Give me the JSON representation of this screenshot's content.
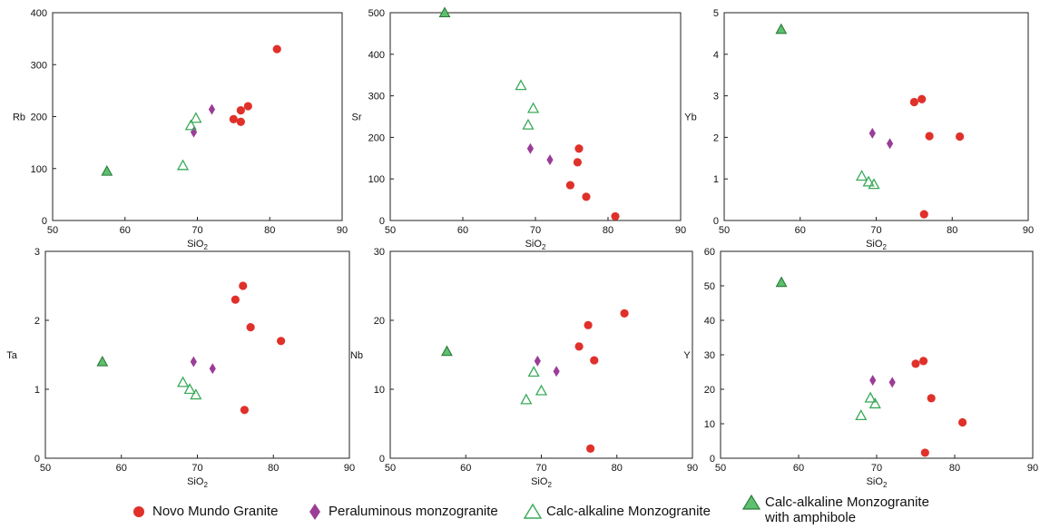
{
  "colors": {
    "novo": "#e0302a",
    "peraluminous": "#9b3d97",
    "calc_stroke": "#3aaa5a",
    "amph_fill": "#5cc06e",
    "amph_stroke": "#2c7a3a"
  },
  "legend": {
    "novo": "Novo Mundo Granite",
    "peraluminous": "Peraluminous monzogranite",
    "calc": "Calc-alkaline Monzogranite",
    "amph_line1": "Calc-alkaline Monzogranite",
    "amph_line2": "with amphibole"
  },
  "chart_data": [
    {
      "type": "scatter",
      "xlabel": "SiO2",
      "ylabel": "Rb",
      "xlim": [
        50,
        90
      ],
      "ylim": [
        0,
        400
      ],
      "xticks": [
        50,
        60,
        70,
        80,
        90
      ],
      "yticks": [
        0,
        100,
        200,
        300,
        400
      ],
      "series": [
        {
          "name": "Novo Mundo Granite",
          "marker": "circle",
          "points": [
            [
              81,
              330
            ],
            [
              77,
              220
            ],
            [
              76,
              212
            ],
            [
              75,
              195
            ],
            [
              76,
              190
            ]
          ]
        },
        {
          "name": "Peraluminous monzogranite",
          "marker": "diamond",
          "points": [
            [
              72,
              214
            ],
            [
              69.5,
              170
            ]
          ]
        },
        {
          "name": "Calc-alkaline Monzogranite",
          "marker": "triangle-open",
          "points": [
            [
              69.8,
              197
            ],
            [
              69.1,
              183
            ],
            [
              68,
              106
            ]
          ]
        },
        {
          "name": "Calc-alkaline Monzogranite with amphibole",
          "marker": "triangle-filled",
          "points": [
            [
              57.5,
              95
            ]
          ]
        }
      ]
    },
    {
      "type": "scatter",
      "xlabel": "SiO2",
      "ylabel": "Sr",
      "xlim": [
        50,
        90
      ],
      "ylim": [
        0,
        500
      ],
      "xticks": [
        50,
        60,
        70,
        80,
        90
      ],
      "yticks": [
        0,
        100,
        200,
        300,
        400,
        500
      ],
      "series": [
        {
          "name": "Novo Mundo Granite",
          "marker": "circle",
          "points": [
            [
              76,
              173
            ],
            [
              75.8,
              140
            ],
            [
              74.8,
              85
            ],
            [
              77,
              57
            ],
            [
              81,
              10
            ]
          ]
        },
        {
          "name": "Peraluminous monzogranite",
          "marker": "diamond",
          "points": [
            [
              69.3,
              173
            ],
            [
              72,
              146
            ]
          ]
        },
        {
          "name": "Calc-alkaline Monzogranite",
          "marker": "triangle-open",
          "points": [
            [
              68,
              325
            ],
            [
              69.7,
              270
            ],
            [
              69,
              230
            ]
          ]
        },
        {
          "name": "Calc-alkaline Monzogranite with amphibole",
          "marker": "triangle-filled",
          "points": [
            [
              57.5,
              500
            ]
          ]
        }
      ]
    },
    {
      "type": "scatter",
      "xlabel": "SiO2",
      "ylabel": "Yb",
      "xlim": [
        50,
        90
      ],
      "ylim": [
        0,
        5
      ],
      "xticks": [
        50,
        60,
        70,
        80,
        90
      ],
      "yticks": [
        0,
        1,
        2,
        3,
        4,
        5
      ],
      "series": [
        {
          "name": "Novo Mundo Granite",
          "marker": "circle",
          "points": [
            [
              76,
              2.92
            ],
            [
              75,
              2.85
            ],
            [
              77,
              2.03
            ],
            [
              81,
              2.02
            ],
            [
              76.3,
              0.15
            ]
          ]
        },
        {
          "name": "Peraluminous monzogranite",
          "marker": "diamond",
          "points": [
            [
              69.5,
              2.1
            ],
            [
              71.8,
              1.85
            ]
          ]
        },
        {
          "name": "Calc-alkaline Monzogranite",
          "marker": "triangle-open",
          "points": [
            [
              68.1,
              1.07
            ],
            [
              69,
              0.93
            ],
            [
              69.7,
              0.87
            ]
          ]
        },
        {
          "name": "Calc-alkaline Monzogranite with amphibole",
          "marker": "triangle-filled",
          "points": [
            [
              57.5,
              4.6
            ]
          ]
        }
      ]
    },
    {
      "type": "scatter",
      "xlabel": "SiO2",
      "ylabel": "Ta",
      "xlim": [
        50,
        90
      ],
      "ylim": [
        0,
        3
      ],
      "xticks": [
        50,
        60,
        70,
        80,
        90
      ],
      "yticks": [
        0,
        1,
        2,
        3
      ],
      "series": [
        {
          "name": "Novo Mundo Granite",
          "marker": "circle",
          "points": [
            [
              76,
              2.5
            ],
            [
              75,
              2.3
            ],
            [
              77,
              1.9
            ],
            [
              81,
              1.7
            ],
            [
              76.2,
              0.7
            ]
          ]
        },
        {
          "name": "Peraluminous monzogranite",
          "marker": "diamond",
          "points": [
            [
              69.5,
              1.4
            ],
            [
              72,
              1.3
            ]
          ]
        },
        {
          "name": "Calc-alkaline Monzogranite",
          "marker": "triangle-open",
          "points": [
            [
              68.1,
              1.1
            ],
            [
              69,
              1.0
            ],
            [
              69.8,
              0.92
            ]
          ]
        },
        {
          "name": "Calc-alkaline Monzogranite with amphibole",
          "marker": "triangle-filled",
          "points": [
            [
              57.5,
              1.4
            ]
          ]
        }
      ]
    },
    {
      "type": "scatter",
      "xlabel": "SiO2",
      "ylabel": "Nb",
      "xlim": [
        50,
        90
      ],
      "ylim": [
        0,
        30
      ],
      "xticks": [
        50,
        60,
        70,
        80,
        90
      ],
      "yticks": [
        0,
        10,
        20,
        30
      ],
      "series": [
        {
          "name": "Novo Mundo Granite",
          "marker": "circle",
          "points": [
            [
              81,
              21
            ],
            [
              76.2,
              19.3
            ],
            [
              75,
              16.2
            ],
            [
              77,
              14.2
            ],
            [
              76.5,
              1.4
            ]
          ]
        },
        {
          "name": "Peraluminous monzogranite",
          "marker": "diamond",
          "points": [
            [
              69.5,
              14.1
            ],
            [
              72,
              12.6
            ]
          ]
        },
        {
          "name": "Calc-alkaline Monzogranite",
          "marker": "triangle-open",
          "points": [
            [
              69,
              12.5
            ],
            [
              70,
              9.8
            ],
            [
              68,
              8.5
            ]
          ]
        },
        {
          "name": "Calc-alkaline Monzogranite with amphibole",
          "marker": "triangle-filled",
          "points": [
            [
              57.5,
              15.5
            ]
          ]
        }
      ]
    },
    {
      "type": "scatter",
      "xlabel": "SiO2",
      "ylabel": "Y",
      "xlim": [
        50,
        90
      ],
      "ylim": [
        0,
        60
      ],
      "xticks": [
        50,
        60,
        70,
        80,
        90
      ],
      "yticks": [
        0,
        10,
        20,
        30,
        40,
        50,
        60
      ],
      "series": [
        {
          "name": "Novo Mundo Granite",
          "marker": "circle",
          "points": [
            [
              76,
              28.2
            ],
            [
              75,
              27.4
            ],
            [
              77,
              17.4
            ],
            [
              81,
              10.4
            ],
            [
              76.2,
              1.6
            ]
          ]
        },
        {
          "name": "Peraluminous monzogranite",
          "marker": "diamond",
          "points": [
            [
              69.5,
              22.6
            ],
            [
              72,
              22
            ]
          ]
        },
        {
          "name": "Calc-alkaline Monzogranite",
          "marker": "triangle-open",
          "points": [
            [
              69.2,
              17.5
            ],
            [
              69.8,
              15.8
            ],
            [
              68,
              12.4
            ]
          ]
        },
        {
          "name": "Calc-alkaline Monzogranite with amphibole",
          "marker": "triangle-filled",
          "points": [
            [
              57.8,
              51
            ]
          ]
        }
      ]
    }
  ]
}
